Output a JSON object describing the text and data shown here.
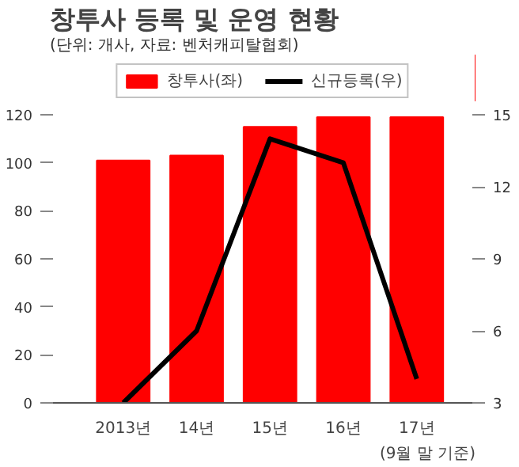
{
  "chart_data": {
    "type": "bar",
    "title": "창투사 등록 및 운영 현황",
    "subtitle": "(단위: 개사, 자료: 벤처캐피탈협회)",
    "categories": [
      "2013년",
      "14년",
      "15년",
      "16년",
      "17년"
    ],
    "series": [
      {
        "name": "창투사(좌)",
        "color": "#ff0000",
        "values": [
          101,
          103,
          115,
          119,
          119
        ]
      },
      {
        "name": "신규등록(우)",
        "type": "line",
        "axis": "y2",
        "color": "#000000",
        "values": [
          3,
          6,
          14,
          13,
          4
        ]
      }
    ],
    "ylim": [
      0,
      120
    ],
    "yticks": [
      0,
      20,
      40,
      60,
      80,
      100,
      120
    ],
    "y2lim": [
      3,
      15
    ],
    "y2ticks": [
      3,
      6,
      9,
      12,
      15
    ],
    "annotations": [
      "(9월 말 기준)"
    ],
    "legend": "top",
    "grid": false
  }
}
